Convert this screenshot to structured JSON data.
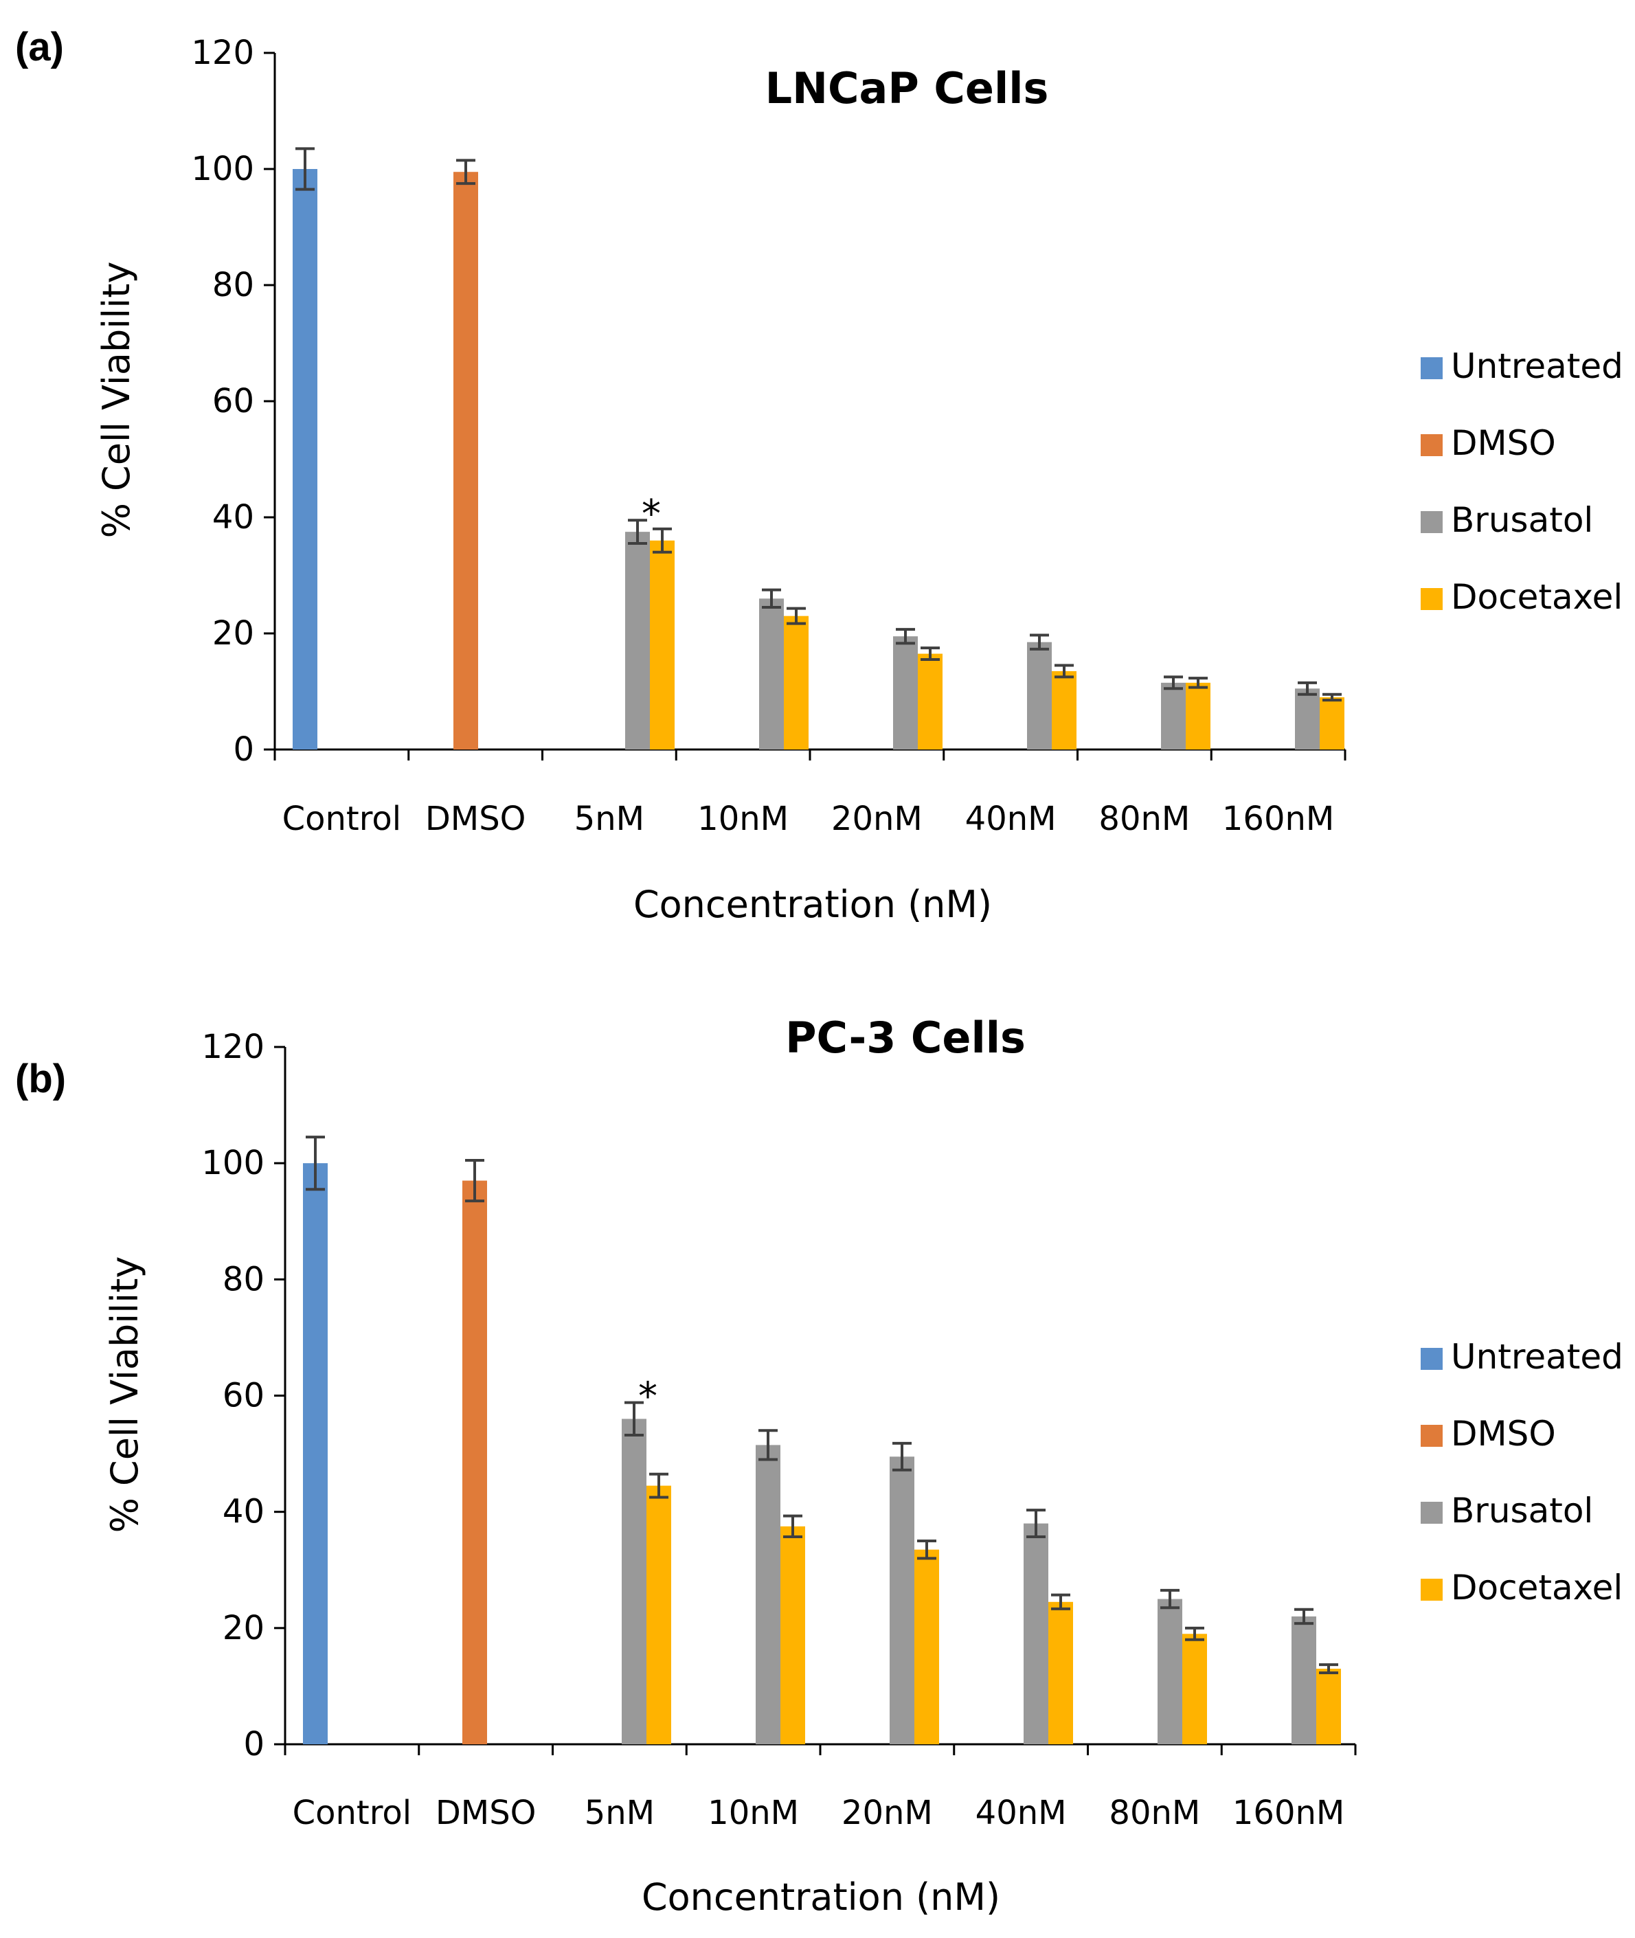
{
  "chart_data": [
    {
      "panel_label": "(a)",
      "type": "bar",
      "title": "LNCaP Cells",
      "xlabel": "Concentration (nM)",
      "ylabel": "% Cell Viability",
      "ylim": [
        0,
        120
      ],
      "yticks": [
        0,
        20,
        40,
        60,
        80,
        100,
        120
      ],
      "categories": [
        "Control",
        "DMSO",
        "5nM",
        "10nM",
        "20nM",
        "40nM",
        "80nM",
        "160nM"
      ],
      "series": [
        {
          "name": "Untreated",
          "color": "#5b8fcb",
          "values": [
            100,
            null,
            null,
            null,
            null,
            null,
            null,
            null
          ],
          "errors": [
            3.5,
            null,
            null,
            null,
            null,
            null,
            null,
            null
          ]
        },
        {
          "name": "DMSO",
          "color": "#e07b39",
          "values": [
            null,
            99.5,
            null,
            null,
            null,
            null,
            null,
            null
          ],
          "errors": [
            null,
            2,
            null,
            null,
            null,
            null,
            null,
            null
          ]
        },
        {
          "name": "Brusatol",
          "color": "#999999",
          "values": [
            null,
            null,
            37.5,
            26,
            19.5,
            18.5,
            11.5,
            10.5
          ],
          "errors": [
            null,
            null,
            2,
            1.5,
            1.2,
            1.2,
            1,
            1
          ]
        },
        {
          "name": "Docetaxel",
          "color": "#ffb300",
          "values": [
            null,
            null,
            36,
            23,
            16.5,
            13.5,
            11.5,
            9
          ],
          "errors": [
            null,
            null,
            2,
            1.3,
            1,
            1,
            0.8,
            0.5
          ]
        }
      ],
      "annotations": [
        {
          "text": "*",
          "category": "5nM"
        }
      ],
      "legend": "right"
    },
    {
      "panel_label": "(b)",
      "type": "bar",
      "title": "PC-3 Cells",
      "xlabel": "Concentration (nM)",
      "ylabel": "% Cell Viability",
      "ylim": [
        0,
        120
      ],
      "yticks": [
        0,
        20,
        40,
        60,
        80,
        100,
        120
      ],
      "categories": [
        "Control",
        "DMSO",
        "5nM",
        "10nM",
        "20nM",
        "40nM",
        "80nM",
        "160nM"
      ],
      "series": [
        {
          "name": "Untreated",
          "color": "#5b8fcb",
          "values": [
            100,
            null,
            null,
            null,
            null,
            null,
            null,
            null
          ],
          "errors": [
            4.5,
            null,
            null,
            null,
            null,
            null,
            null,
            null
          ]
        },
        {
          "name": "DMSO",
          "color": "#e07b39",
          "values": [
            null,
            97,
            null,
            null,
            null,
            null,
            null,
            null
          ],
          "errors": [
            null,
            3.5,
            null,
            null,
            null,
            null,
            null,
            null
          ]
        },
        {
          "name": "Brusatol",
          "color": "#999999",
          "values": [
            null,
            null,
            56,
            51.5,
            49.5,
            38,
            25,
            22
          ],
          "errors": [
            null,
            null,
            2.8,
            2.5,
            2.3,
            2.3,
            1.5,
            1.2
          ]
        },
        {
          "name": "Docetaxel",
          "color": "#ffb300",
          "values": [
            null,
            null,
            44.5,
            37.5,
            33.5,
            24.5,
            19,
            13
          ],
          "errors": [
            null,
            null,
            2,
            1.8,
            1.5,
            1.2,
            1,
            0.7
          ]
        }
      ],
      "annotations": [
        {
          "text": "*",
          "category": "5nM"
        }
      ],
      "legend": "right"
    }
  ]
}
